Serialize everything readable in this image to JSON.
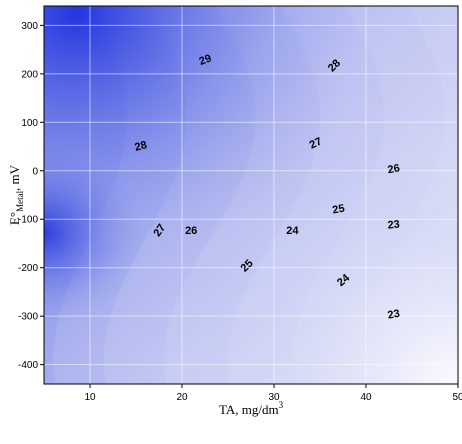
{
  "chart_data": {
    "type": "contour",
    "xlabel": "TA, mg/dm",
    "xlabel_superscript": "3",
    "ylabel_prefix": "E°",
    "ylabel_subscript": "Metal",
    "ylabel_suffix": ", mV",
    "xlim": [
      5,
      50
    ],
    "ylim": [
      -440,
      340
    ],
    "x_ticks": [
      10,
      20,
      30,
      40,
      50
    ],
    "y_ticks": [
      300,
      200,
      100,
      0,
      -100,
      -200,
      -300,
      -400
    ],
    "grid": true,
    "color_scale": {
      "high": "#2b3fe0",
      "low": "#f3f4fc"
    },
    "contour_labels": [
      {
        "text": "29",
        "x": 22.5,
        "y": 230,
        "angle": -20
      },
      {
        "text": "28",
        "x": 36.5,
        "y": 218,
        "angle": -45
      },
      {
        "text": "28",
        "x": 15.5,
        "y": 52,
        "angle": -15
      },
      {
        "text": "27",
        "x": 34.5,
        "y": 58,
        "angle": -25
      },
      {
        "text": "26",
        "x": 43.0,
        "y": 5,
        "angle": -10
      },
      {
        "text": "25",
        "x": 37.0,
        "y": -78,
        "angle": -10
      },
      {
        "text": "27",
        "x": 17.5,
        "y": -122,
        "angle": -55
      },
      {
        "text": "26",
        "x": 21.0,
        "y": -122,
        "angle": 0
      },
      {
        "text": "24",
        "x": 32.0,
        "y": -122,
        "angle": 0
      },
      {
        "text": "23",
        "x": 43.0,
        "y": -110,
        "angle": -5
      },
      {
        "text": "25",
        "x": 27.0,
        "y": -195,
        "angle": -45
      },
      {
        "text": "24",
        "x": 37.5,
        "y": -225,
        "angle": -40
      },
      {
        "text": "23",
        "x": 43.0,
        "y": -295,
        "angle": -10
      }
    ]
  }
}
